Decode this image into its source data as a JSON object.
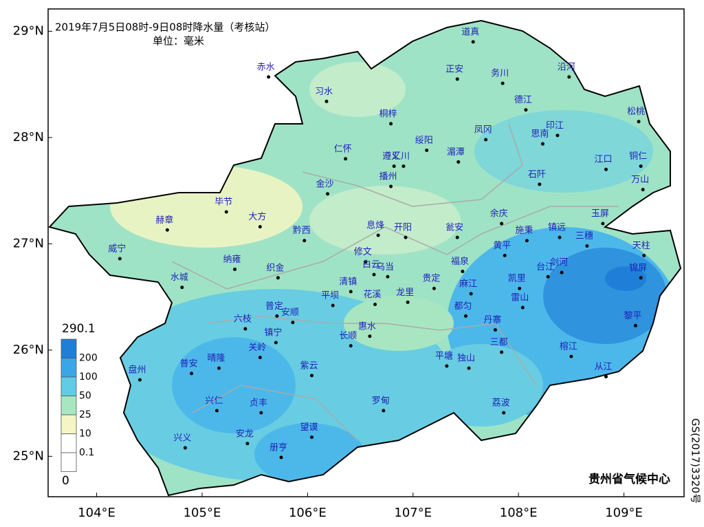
{
  "title": "2019年7月5日08时-9日08时降水量（考核站）",
  "unit": "单位：毫米",
  "credit": "贵州省气候中心",
  "map_number": "GS(2017)3320号",
  "xlim": [
    103.54,
    109.57
  ],
  "ylim": [
    24.62,
    29.21
  ],
  "xticks": [
    {
      "value": 104,
      "label": "104°E"
    },
    {
      "value": 105,
      "label": "105°E"
    },
    {
      "value": 106,
      "label": "106°E"
    },
    {
      "value": 107,
      "label": "107°E"
    },
    {
      "value": 108,
      "label": "108°E"
    },
    {
      "value": 109,
      "label": "109°E"
    }
  ],
  "yticks": [
    {
      "value": 25,
      "label": "25°N"
    },
    {
      "value": 26,
      "label": "26°N"
    },
    {
      "value": 27,
      "label": "27°N"
    },
    {
      "value": 28,
      "label": "28°N"
    },
    {
      "value": 29,
      "label": "29°N"
    }
  ],
  "legend": {
    "max": 290.1,
    "levels": [
      200,
      100,
      50,
      25,
      10,
      0.1
    ],
    "min": 0,
    "colors": [
      "#1f7fd8",
      "#3aa6e6",
      "#62cbe6",
      "#a8e6c2",
      "#f6f6c4",
      "#ffffff",
      "#ffffff"
    ]
  },
  "stations": [
    {
      "name": "道真",
      "lon": 107.57,
      "lat": 28.9
    },
    {
      "name": "正安",
      "lon": 107.42,
      "lat": 28.55
    },
    {
      "name": "务川",
      "lon": 107.85,
      "lat": 28.51
    },
    {
      "name": "沿河",
      "lon": 108.48,
      "lat": 28.57
    },
    {
      "name": "赤水",
      "lon": 105.63,
      "lat": 28.57
    },
    {
      "name": "习水",
      "lon": 106.18,
      "lat": 28.34
    },
    {
      "name": "桐梓",
      "lon": 106.79,
      "lat": 28.13
    },
    {
      "name": "德江",
      "lon": 108.07,
      "lat": 28.26
    },
    {
      "name": "松桃",
      "lon": 109.14,
      "lat": 28.15
    },
    {
      "name": "绥阳",
      "lon": 107.13,
      "lat": 27.88
    },
    {
      "name": "凤冈",
      "lon": 107.69,
      "lat": 27.98
    },
    {
      "name": "印江",
      "lon": 108.37,
      "lat": 28.02
    },
    {
      "name": "思南",
      "lon": 108.23,
      "lat": 27.94
    },
    {
      "name": "仁怀",
      "lon": 106.36,
      "lat": 27.8
    },
    {
      "name": "遵义",
      "lon": 106.82,
      "lat": 27.73
    },
    {
      "name": "汇川",
      "lon": 106.91,
      "lat": 27.73
    },
    {
      "name": "湄潭",
      "lon": 107.43,
      "lat": 27.77
    },
    {
      "name": "江口",
      "lon": 108.83,
      "lat": 27.7
    },
    {
      "name": "铜仁",
      "lon": 109.16,
      "lat": 27.73
    },
    {
      "name": "播州",
      "lon": 106.79,
      "lat": 27.54
    },
    {
      "name": "石阡",
      "lon": 108.2,
      "lat": 27.56
    },
    {
      "name": "万山",
      "lon": 109.18,
      "lat": 27.51
    },
    {
      "name": "金沙",
      "lon": 106.19,
      "lat": 27.47
    },
    {
      "name": "毕节",
      "lon": 105.23,
      "lat": 27.3
    },
    {
      "name": "大方",
      "lon": 105.55,
      "lat": 27.16
    },
    {
      "name": "余庆",
      "lon": 107.84,
      "lat": 27.19
    },
    {
      "name": "玉屏",
      "lon": 108.8,
      "lat": 27.19
    },
    {
      "name": "赫章",
      "lon": 104.67,
      "lat": 27.13
    },
    {
      "name": "黔西",
      "lon": 105.97,
      "lat": 27.03
    },
    {
      "name": "息烽",
      "lon": 106.67,
      "lat": 27.08
    },
    {
      "name": "开阳",
      "lon": 106.93,
      "lat": 27.06
    },
    {
      "name": "瓮安",
      "lon": 107.42,
      "lat": 27.06
    },
    {
      "name": "施秉",
      "lon": 108.08,
      "lat": 27.03
    },
    {
      "name": "镇远",
      "lon": 108.39,
      "lat": 27.06
    },
    {
      "name": "三穗",
      "lon": 108.65,
      "lat": 26.98
    },
    {
      "name": "天柱",
      "lon": 109.19,
      "lat": 26.89
    },
    {
      "name": "威宁",
      "lon": 104.22,
      "lat": 26.86
    },
    {
      "name": "黄平",
      "lon": 107.87,
      "lat": 26.89
    },
    {
      "name": "修文",
      "lon": 106.55,
      "lat": 26.83
    },
    {
      "name": "纳雍",
      "lon": 105.31,
      "lat": 26.76
    },
    {
      "name": "织金",
      "lon": 105.72,
      "lat": 26.68
    },
    {
      "name": "白云",
      "lon": 106.63,
      "lat": 26.71
    },
    {
      "name": "乌当",
      "lon": 106.76,
      "lat": 26.69
    },
    {
      "name": "福泉",
      "lon": 107.47,
      "lat": 26.74
    },
    {
      "name": "台江",
      "lon": 108.28,
      "lat": 26.69
    },
    {
      "name": "剑河",
      "lon": 108.41,
      "lat": 26.73
    },
    {
      "name": "锦屏",
      "lon": 109.16,
      "lat": 26.68
    },
    {
      "name": "清镇",
      "lon": 106.41,
      "lat": 26.55
    },
    {
      "name": "水城",
      "lon": 104.81,
      "lat": 26.59
    },
    {
      "name": "花溪",
      "lon": 106.64,
      "lat": 26.43
    },
    {
      "name": "龙里",
      "lon": 106.95,
      "lat": 26.45
    },
    {
      "name": "贵定",
      "lon": 107.2,
      "lat": 26.58
    },
    {
      "name": "麻江",
      "lon": 107.55,
      "lat": 26.53
    },
    {
      "name": "凯里",
      "lon": 108.01,
      "lat": 26.58
    },
    {
      "name": "雷山",
      "lon": 108.04,
      "lat": 26.4
    },
    {
      "name": "平坝",
      "lon": 106.24,
      "lat": 26.42
    },
    {
      "name": "普定",
      "lon": 105.71,
      "lat": 26.32
    },
    {
      "name": "安顺",
      "lon": 105.86,
      "lat": 26.26
    },
    {
      "name": "都匀",
      "lon": 107.5,
      "lat": 26.32
    },
    {
      "name": "六枝",
      "lon": 105.41,
      "lat": 26.2
    },
    {
      "name": "惠水",
      "lon": 106.59,
      "lat": 26.13
    },
    {
      "name": "丹寨",
      "lon": 107.78,
      "lat": 26.19
    },
    {
      "name": "黎平",
      "lon": 109.11,
      "lat": 26.23
    },
    {
      "name": "长顺",
      "lon": 106.41,
      "lat": 26.04
    },
    {
      "name": "镇宁",
      "lon": 105.7,
      "lat": 26.07
    },
    {
      "name": "关岭",
      "lon": 105.55,
      "lat": 25.93
    },
    {
      "name": "三都",
      "lon": 107.84,
      "lat": 25.98
    },
    {
      "name": "榕江",
      "lon": 108.5,
      "lat": 25.94
    },
    {
      "name": "普安",
      "lon": 104.9,
      "lat": 25.78
    },
    {
      "name": "晴隆",
      "lon": 105.16,
      "lat": 25.83
    },
    {
      "name": "紫云",
      "lon": 106.04,
      "lat": 25.76
    },
    {
      "name": "平塘",
      "lon": 107.32,
      "lat": 25.85
    },
    {
      "name": "独山",
      "lon": 107.53,
      "lat": 25.83
    },
    {
      "name": "盘州",
      "lon": 104.41,
      "lat": 25.72
    },
    {
      "name": "从江",
      "lon": 108.83,
      "lat": 25.75
    },
    {
      "name": "兴仁",
      "lon": 105.14,
      "lat": 25.43
    },
    {
      "name": "贞丰",
      "lon": 105.56,
      "lat": 25.41
    },
    {
      "name": "罗甸",
      "lon": 106.72,
      "lat": 25.43
    },
    {
      "name": "荔波",
      "lon": 107.86,
      "lat": 25.41
    },
    {
      "name": "兴义",
      "lon": 104.84,
      "lat": 25.08
    },
    {
      "name": "安龙",
      "lon": 105.43,
      "lat": 25.12
    },
    {
      "name": "望谟",
      "lon": 106.04,
      "lat": 25.18
    },
    {
      "name": "册亨",
      "lon": 105.75,
      "lat": 24.99
    }
  ]
}
